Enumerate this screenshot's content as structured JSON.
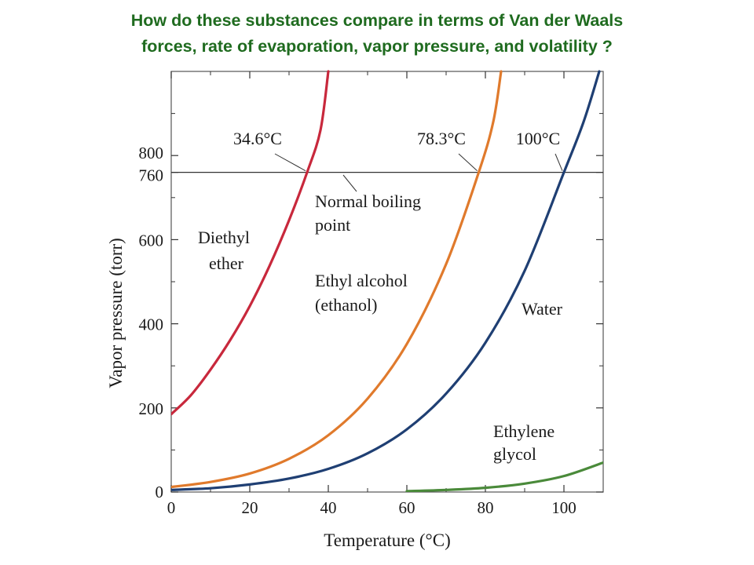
{
  "slide": {
    "heading_line1": "How do these substances compare in terms of Van der Waals",
    "heading_line2": "forces, rate of evaporation, vapor pressure, and volatility ?"
  },
  "chart_data": {
    "type": "line",
    "title": "",
    "xlabel": "Temperature (°C)",
    "ylabel": "Vapor pressure (torr)",
    "xlim": [
      0,
      110
    ],
    "ylim": [
      0,
      1000
    ],
    "x_ticks": [
      "0",
      "20",
      "40",
      "60",
      "80",
      "100"
    ],
    "y_ticks": [
      "0",
      "200",
      "400",
      "600",
      "760",
      "800"
    ],
    "grid": false,
    "reference_line": {
      "y": 760,
      "label": "Normal boiling point"
    },
    "boiling_point_labels": [
      {
        "text": "34.6°C",
        "x": 34.6,
        "series": "Diethyl ether"
      },
      {
        "text": "78.3°C",
        "x": 78.3,
        "series": "Ethyl alcohol (ethanol)"
      },
      {
        "text": "100°C",
        "x": 100,
        "series": "Water"
      }
    ],
    "series": [
      {
        "name": "Diethyl ether",
        "label_lines": [
          "Diethyl",
          "ether"
        ],
        "color": "#c8283c",
        "x": [
          0,
          5,
          10,
          15,
          20,
          25,
          30,
          34.6,
          38,
          40
        ],
        "y": [
          185,
          230,
          291,
          361,
          442,
          537,
          646,
          760,
          860,
          1000
        ]
      },
      {
        "name": "Ethyl alcohol (ethanol)",
        "label_lines": [
          "Ethyl alcohol",
          "(ethanol)"
        ],
        "color": "#e07a2c",
        "x": [
          0,
          10,
          20,
          30,
          40,
          50,
          60,
          70,
          78.3,
          82,
          84
        ],
        "y": [
          12,
          24,
          44,
          79,
          135,
          222,
          352,
          542,
          760,
          880,
          1000
        ]
      },
      {
        "name": "Water",
        "label_lines": [
          "Water"
        ],
        "color": "#1f3f73",
        "x": [
          0,
          10,
          20,
          30,
          40,
          50,
          60,
          70,
          80,
          90,
          100,
          105,
          109
        ],
        "y": [
          5,
          9,
          18,
          32,
          55,
          92,
          149,
          234,
          355,
          526,
          760,
          880,
          1000
        ]
      },
      {
        "name": "Ethylene glycol",
        "label_lines": [
          "Ethylene",
          "glycol"
        ],
        "color": "#4a8a3a",
        "x": [
          60,
          70,
          80,
          90,
          100,
          110
        ],
        "y": [
          2,
          5,
          10,
          20,
          38,
          70
        ]
      }
    ]
  }
}
